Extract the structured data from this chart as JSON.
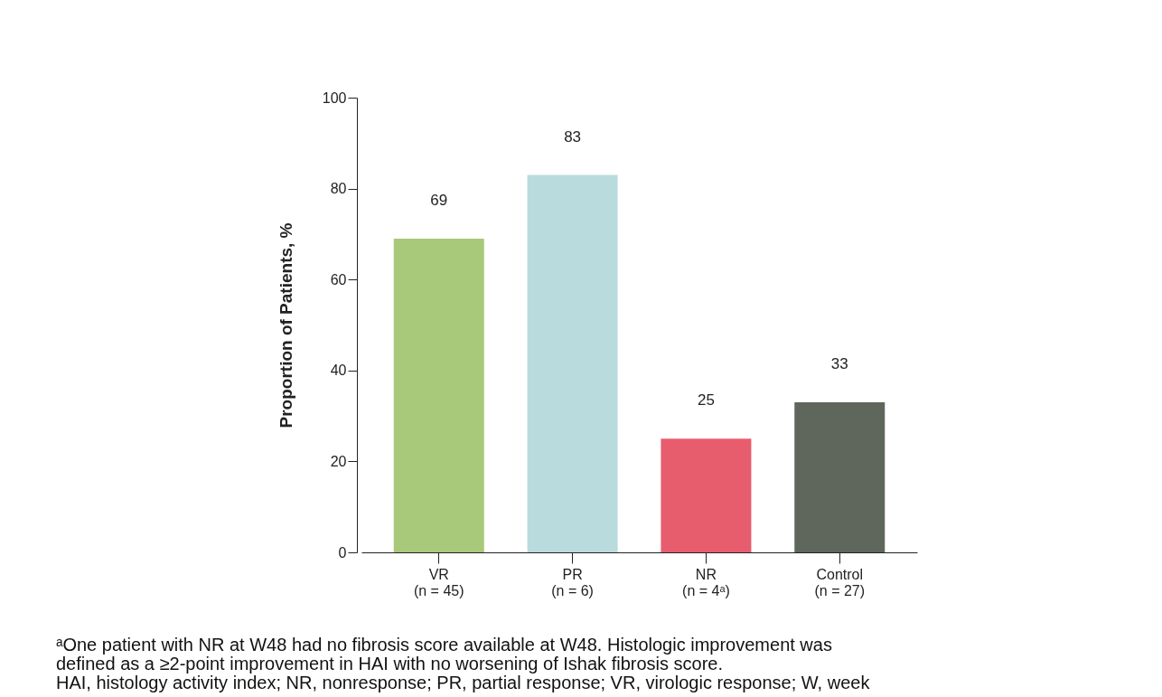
{
  "chart_data": {
    "type": "bar",
    "ylabel": "Proportion of Patients, %",
    "categories": [
      "VR\n(n = 45)",
      "PR\n(n = 6)",
      "NR\n(n = 4ᵃ)",
      "Control\n(n = 27)"
    ],
    "values": [
      69,
      83,
      25,
      33
    ],
    "colors": [
      "#a8c87a",
      "#b9dbdd",
      "#e85d6e",
      "#5f665c"
    ],
    "ylim": [
      0,
      100
    ],
    "yticks": [
      0,
      20,
      40,
      60,
      80,
      100
    ],
    "grid": false,
    "data_labels": true,
    "annotations": [
      "ᵃOne patient with NR at W48 had no fibrosis score available at W48. Histologic improvement was",
      "defined as a ≥2-point improvement in HAI with no worsening of Ishak fibrosis score.",
      "HAI, histology activity index; NR, nonresponse; PR, partial response; VR, virologic response; W, week"
    ]
  }
}
